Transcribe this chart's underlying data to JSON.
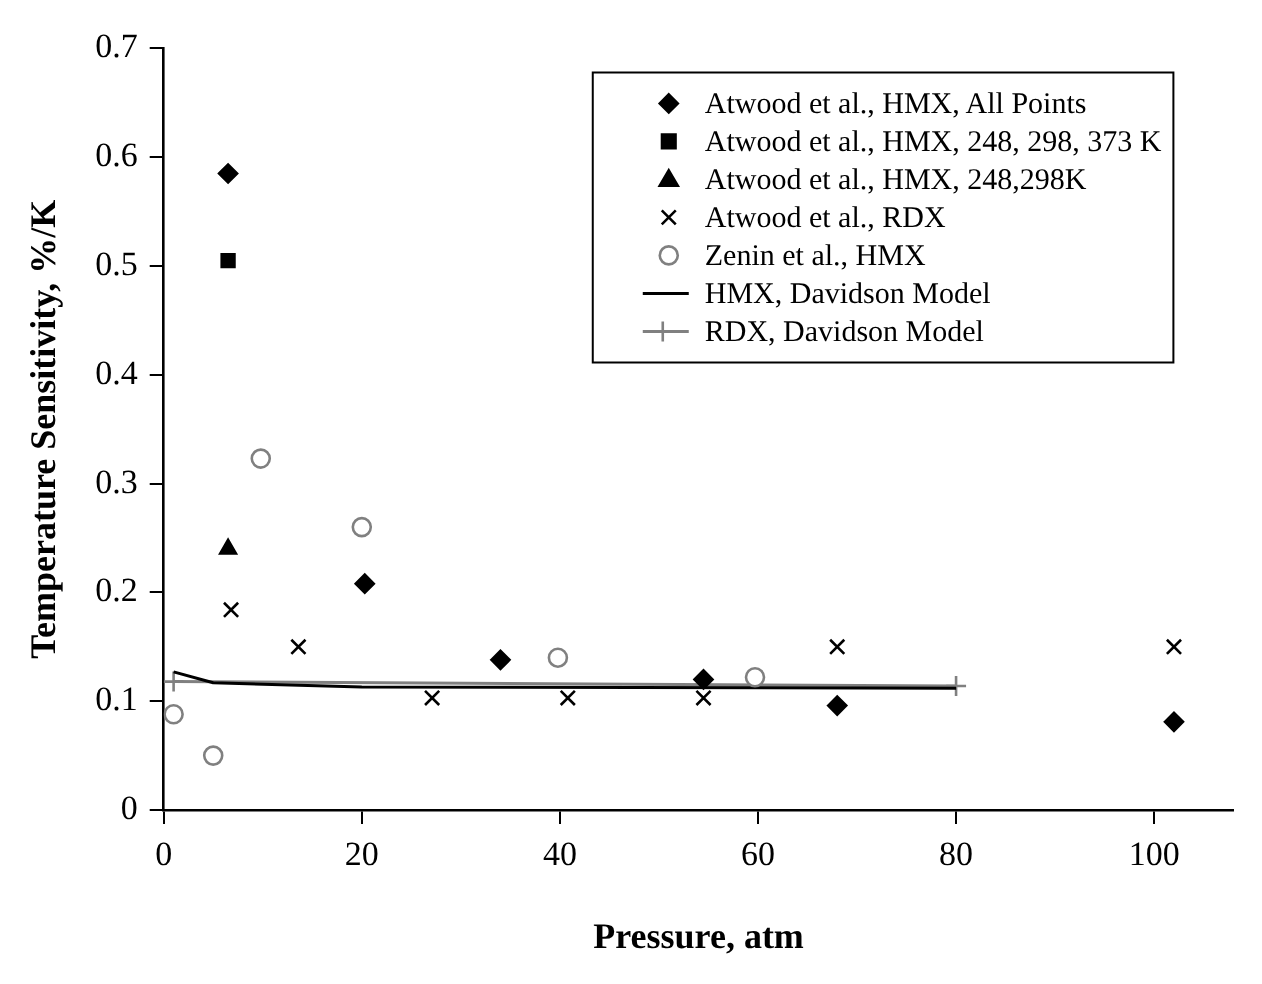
{
  "chart_data": {
    "type": "scatter",
    "xlabel": "Pressure, atm",
    "ylabel": "Temperature Sensitivity, %/K",
    "xlim": [
      0,
      108
    ],
    "xticks": [
      0,
      20,
      40,
      60,
      80,
      100
    ],
    "ylim": [
      0,
      0.7
    ],
    "yticks": [
      0,
      0.1,
      0.2,
      0.3,
      0.4,
      0.5,
      0.6,
      0.7
    ],
    "grid": false,
    "legend": "top right",
    "series": [
      {
        "name": "Atwood et al., HMX, All Points",
        "marker": "diamond",
        "color": "#000000",
        "x": [
          6.5,
          20.3,
          34,
          54.5,
          68,
          102
        ],
        "values": [
          0.585,
          0.208,
          0.138,
          0.12,
          0.096,
          0.081
        ]
      },
      {
        "name": "Atwood et al., HMX, 248, 298, 373 K",
        "marker": "square",
        "color": "#000000",
        "x": [
          6.5
        ],
        "values": [
          0.505
        ]
      },
      {
        "name": "Atwood et al., HMX, 248,298K",
        "marker": "triangle",
        "color": "#000000",
        "x": [
          6.5
        ],
        "values": [
          0.24
        ]
      },
      {
        "name": "Atwood et al., RDX",
        "marker": "cross",
        "color": "#000000",
        "x": [
          6.8,
          13.6,
          27.1,
          40.8,
          54.5,
          68,
          102
        ],
        "values": [
          0.184,
          0.15,
          0.103,
          0.103,
          0.103,
          0.15,
          0.15
        ]
      },
      {
        "name": "Zenin et al., HMX",
        "marker": "circle",
        "color": "#808080",
        "x": [
          1,
          5,
          9.8,
          20,
          39.8,
          59.7
        ],
        "values": [
          0.088,
          0.05,
          0.323,
          0.26,
          0.14,
          0.122
        ]
      },
      {
        "name": "HMX, Davidson Model",
        "type": "line",
        "marker": "none",
        "color": "#000000",
        "x": [
          1,
          5,
          20,
          80
        ],
        "values": [
          0.127,
          0.117,
          0.113,
          0.112
        ]
      },
      {
        "name": "RDX, Davidson Model",
        "type": "line",
        "marker": "cross",
        "color": "#808080",
        "x": [
          1,
          80
        ],
        "values": [
          0.118,
          0.114
        ]
      }
    ]
  }
}
